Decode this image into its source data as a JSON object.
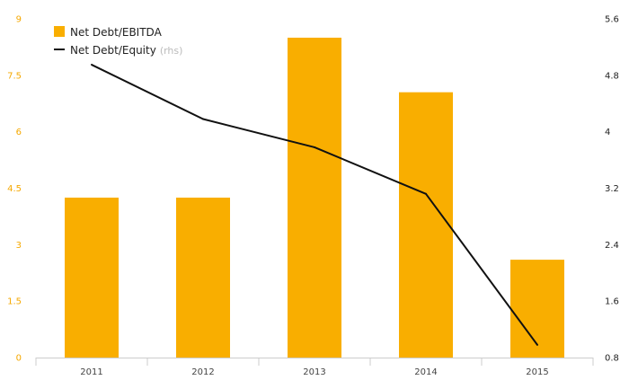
{
  "colors": {
    "bar": "#f9ae00",
    "line": "#111111",
    "left_tick": "#f5a800",
    "right_tick": "#222222",
    "axis": "#cccccc"
  },
  "legend": {
    "bar_label": "Net Debt/EBITDA",
    "line_label": "Net Debt/Equity",
    "line_suffix": "(rhs)"
  },
  "chart_data": {
    "type": "bar",
    "categories": [
      "2011",
      "2012",
      "2013",
      "2014",
      "2015"
    ],
    "series": [
      {
        "name": "Net Debt/EBITDA",
        "type": "bar",
        "axis": "left",
        "values": [
          4.25,
          4.25,
          8.5,
          7.05,
          2.6
        ]
      },
      {
        "name": "Net Debt/Equity",
        "type": "line",
        "axis": "right",
        "values": [
          4.95,
          4.18,
          3.78,
          3.12,
          0.98
        ]
      }
    ],
    "left_axis": {
      "ticks": [
        "0",
        "1.5",
        "3",
        "4.5",
        "6",
        "7.5",
        "9"
      ],
      "ylim": [
        0,
        9
      ]
    },
    "right_axis": {
      "ticks": [
        "0.8",
        "1.6",
        "2.4",
        "3.2",
        "4",
        "4.8",
        "5.6"
      ],
      "ylim": [
        0.8,
        5.6
      ]
    },
    "grid": false,
    "legend_position": "top-left"
  }
}
